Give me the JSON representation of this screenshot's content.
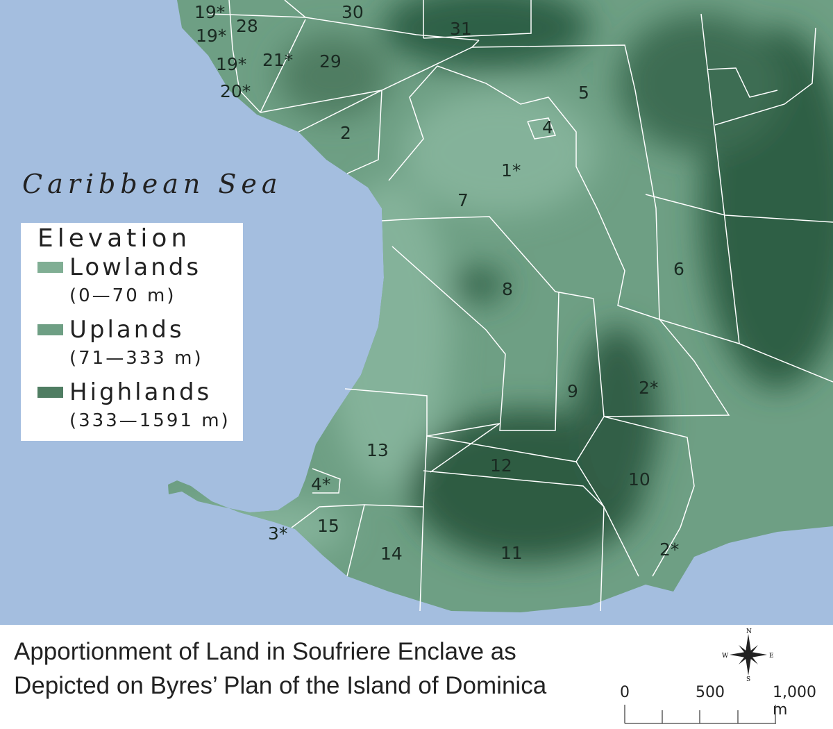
{
  "map": {
    "sea_label": "Caribbean Sea",
    "colors": {
      "sea": "#a4bedf",
      "lowlands": "#80ae94",
      "uplands": "#6e9f84",
      "highlands": "#4f7d62",
      "boundary": "#ffffff"
    },
    "parcel_labels": [
      "19*",
      "28",
      "19*",
      "30",
      "31",
      "19*",
      "21*",
      "29",
      "20*",
      "5",
      "4",
      "2",
      "1*",
      "7",
      "6",
      "8",
      "2*",
      "9",
      "13",
      "12",
      "10",
      "4*",
      "15",
      "3*",
      "14",
      "11",
      "2*"
    ]
  },
  "legend": {
    "title": "Elevation",
    "items": [
      {
        "name": "Lowlands",
        "range": "(0—70 m)",
        "color": "#80ae94"
      },
      {
        "name": "Uplands",
        "range": "(71—333 m)",
        "color": "#6e9f84"
      },
      {
        "name": "Highlands",
        "range": "(333—1591 m)",
        "color": "#4f7d62"
      }
    ]
  },
  "caption": {
    "line1": "Apportionment of Land in Soufriere Enclave as",
    "line2": "Depicted on Byres’ Plan of the Island of Dominica"
  },
  "compass": {
    "n": "N",
    "s": "S",
    "e": "E",
    "w": "W"
  },
  "scale_bar": {
    "labels": [
      "0",
      "500",
      "1,000 m"
    ]
  }
}
